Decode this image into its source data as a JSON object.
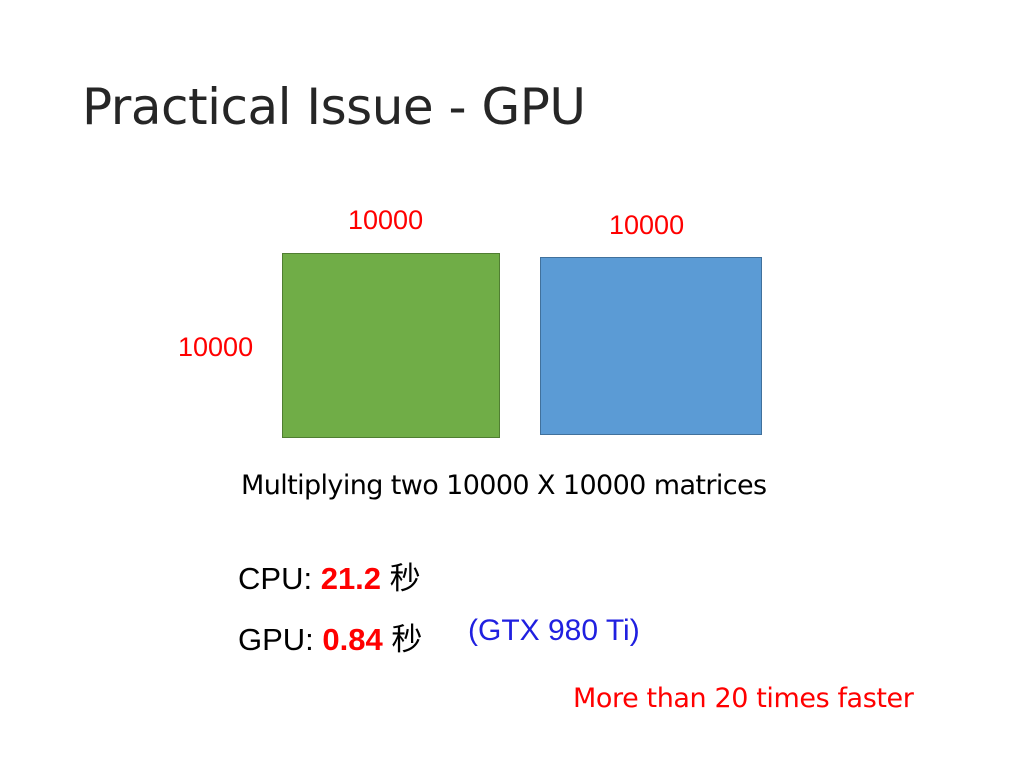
{
  "slide": {
    "title": "Practical Issue - GPU"
  },
  "matrices": {
    "a_top_label": "10000",
    "a_side_label": "10000",
    "b_top_label": "10000",
    "a_color": "#70ad47",
    "b_color": "#5b9bd5"
  },
  "caption": "Multiplying two 10000 X 10000 matrices",
  "timings": {
    "cpu": {
      "label": "CPU:",
      "value": "21.2",
      "unit": "秒"
    },
    "gpu": {
      "label": "GPU:",
      "value": "0.84",
      "unit": "秒",
      "model": "(GTX 980 Ti)"
    }
  },
  "speedup_note": "More than 20 times faster",
  "colors": {
    "highlight": "#ff0000",
    "model_text": "#2020e0"
  }
}
